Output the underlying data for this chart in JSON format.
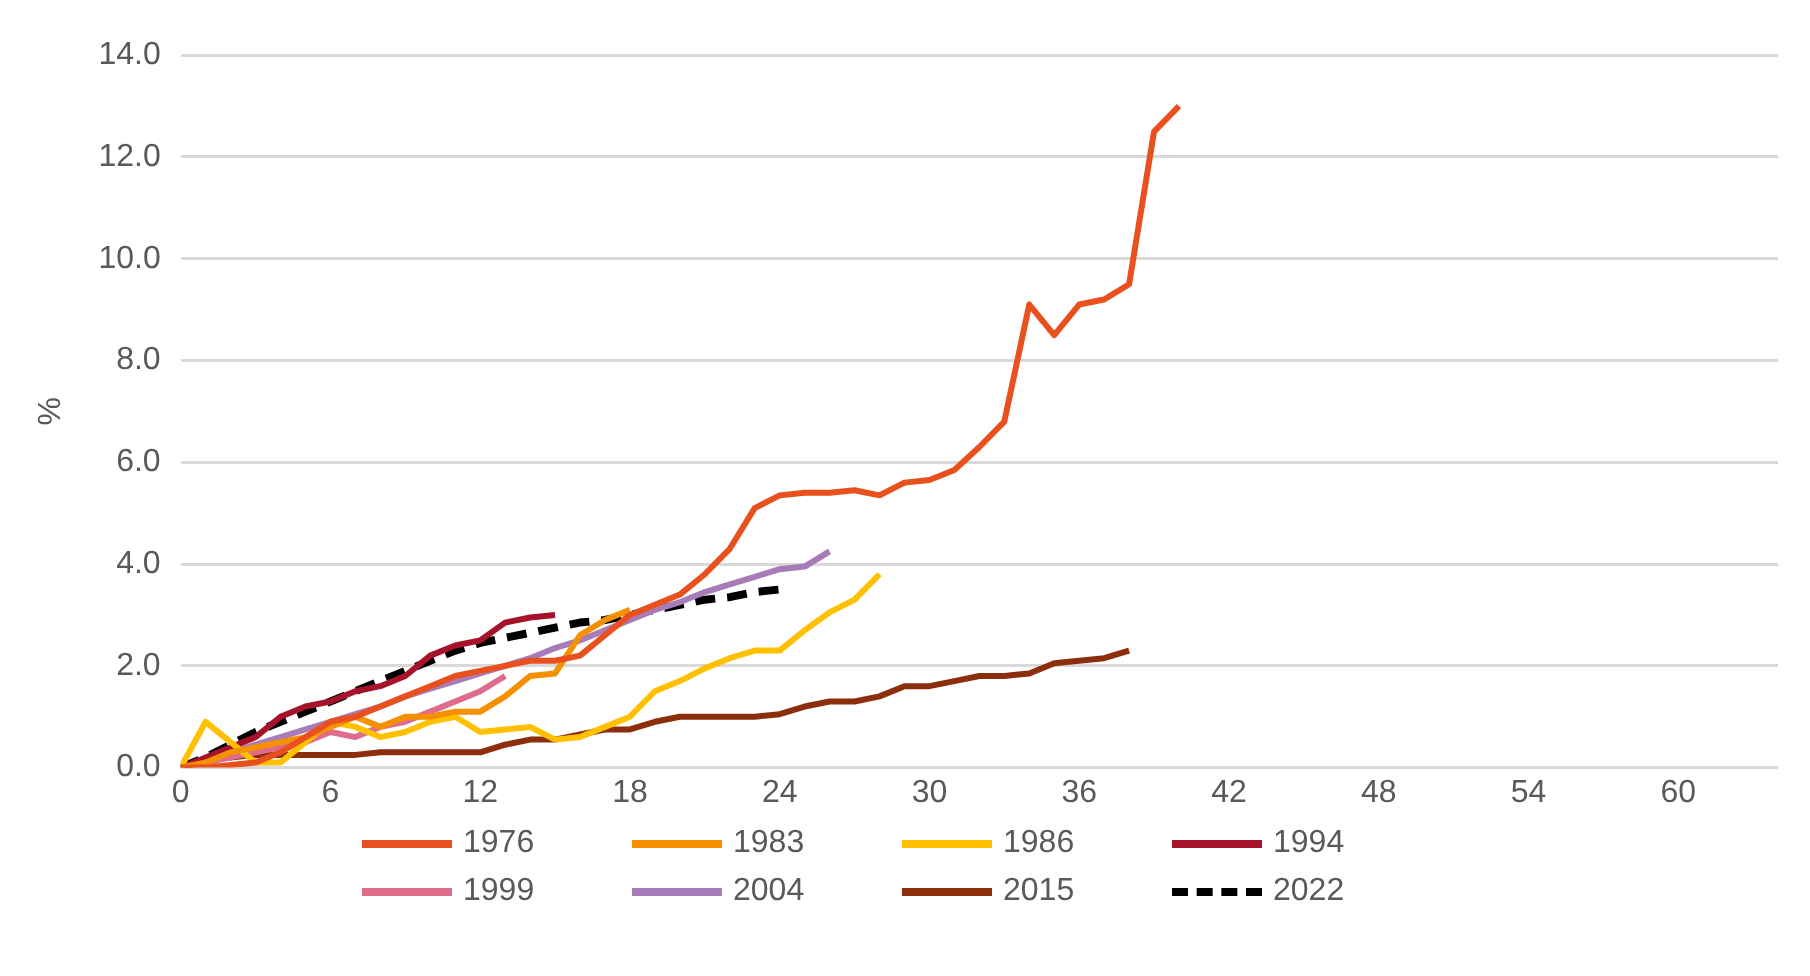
{
  "chart_data": {
    "type": "line",
    "ylabel": "%",
    "x": [
      0,
      1,
      2,
      3,
      4,
      5,
      6,
      7,
      8,
      9,
      10,
      11,
      12,
      13,
      14,
      15,
      16,
      17,
      18,
      19,
      20,
      21,
      22,
      23,
      24,
      25,
      26,
      27,
      28,
      29,
      30,
      31,
      32,
      33,
      34,
      35,
      36,
      37,
      38,
      39,
      40
    ],
    "xlim": [
      0,
      64
    ],
    "xticks": [
      0,
      6,
      12,
      18,
      24,
      30,
      36,
      42,
      48,
      54,
      60
    ],
    "ylim": [
      0,
      14
    ],
    "yticks": [
      {
        "value": 0,
        "label": "0.0"
      },
      {
        "value": 2,
        "label": "2.0"
      },
      {
        "value": 4,
        "label": "4.0"
      },
      {
        "value": 6,
        "label": "6.0"
      },
      {
        "value": 8,
        "label": "8.0"
      },
      {
        "value": 10,
        "label": "10.0"
      },
      {
        "value": 12,
        "label": "12.0"
      },
      {
        "value": 14,
        "label": "14.0"
      }
    ],
    "grid": "y",
    "legend": "bottom",
    "marker": "none",
    "series": [
      {
        "name": "1976",
        "color": "#e8501e",
        "values": [
          0,
          0,
          0.05,
          0.1,
          0.3,
          0.6,
          0.9,
          1.0,
          1.2,
          1.4,
          1.6,
          1.8,
          1.9,
          2.0,
          2.1,
          2.1,
          2.2,
          2.6,
          3.0,
          3.2,
          3.4,
          3.8,
          4.3,
          5.1,
          5.35,
          5.4,
          5.4,
          5.45,
          5.35,
          5.6,
          5.65,
          5.85,
          6.3,
          6.8,
          9.1,
          8.5,
          9.1,
          9.2,
          9.5,
          12.5,
          13.0
        ]
      },
      {
        "name": "1983",
        "color": "#f59100",
        "values": [
          0,
          0.1,
          0.3,
          0.4,
          0.5,
          0.6,
          0.8,
          1.0,
          0.8,
          1.0,
          1.0,
          1.1,
          1.1,
          1.4,
          1.8,
          1.85,
          2.6,
          2.9,
          3.1,
          null,
          null,
          null,
          null,
          null,
          null,
          null,
          null,
          null,
          null,
          null,
          null,
          null,
          null,
          null,
          null,
          null,
          null,
          null,
          null,
          null,
          null
        ]
      },
      {
        "name": "1986",
        "color": "#ffc000",
        "values": [
          0,
          0.9,
          0.5,
          0.1,
          0.1,
          0.5,
          0.9,
          0.8,
          0.6,
          0.7,
          0.9,
          1.0,
          0.7,
          0.75,
          0.8,
          0.55,
          0.6,
          0.8,
          1.0,
          1.5,
          1.7,
          1.95,
          2.15,
          2.3,
          2.3,
          2.7,
          3.05,
          3.3,
          3.8,
          null,
          null,
          null,
          null,
          null,
          null,
          null,
          null,
          null,
          null,
          null,
          null
        ]
      },
      {
        "name": "1994",
        "color": "#a5122a",
        "values": [
          0,
          0.2,
          0.4,
          0.6,
          1.0,
          1.2,
          1.3,
          1.5,
          1.6,
          1.8,
          2.2,
          2.4,
          2.5,
          2.85,
          2.95,
          3.0,
          null,
          null,
          null,
          null,
          null,
          null,
          null,
          null,
          null,
          null,
          null,
          null,
          null,
          null,
          null,
          null,
          null,
          null,
          null,
          null,
          null,
          null,
          null,
          null,
          null
        ]
      },
      {
        "name": "1999",
        "color": "#e06c8c",
        "values": [
          0,
          0.1,
          0.2,
          0.3,
          0.4,
          0.5,
          0.7,
          0.6,
          0.8,
          0.9,
          1.1,
          1.3,
          1.5,
          1.8,
          null,
          null,
          null,
          null,
          null,
          null,
          null,
          null,
          null,
          null,
          null,
          null,
          null,
          null,
          null,
          null,
          null,
          null,
          null,
          null,
          null,
          null,
          null,
          null,
          null,
          null,
          null
        ]
      },
      {
        "name": "2004",
        "color": "#a87cb8",
        "values": [
          0,
          0.15,
          0.3,
          0.45,
          0.6,
          0.75,
          0.9,
          1.05,
          1.2,
          1.4,
          1.55,
          1.7,
          1.85,
          2.0,
          2.15,
          2.35,
          2.5,
          2.7,
          2.9,
          3.1,
          3.25,
          3.45,
          3.6,
          3.75,
          3.9,
          3.95,
          4.25,
          null,
          null,
          null,
          null,
          null,
          null,
          null,
          null,
          null,
          null,
          null,
          null,
          null,
          null
        ]
      },
      {
        "name": "2015",
        "color": "#8c2d0c",
        "values": [
          0,
          0.15,
          0.2,
          0.25,
          0.25,
          0.25,
          0.25,
          0.25,
          0.3,
          0.3,
          0.3,
          0.3,
          0.3,
          0.45,
          0.55,
          0.55,
          0.65,
          0.75,
          0.75,
          0.9,
          1.0,
          1.0,
          1.0,
          1.0,
          1.05,
          1.2,
          1.3,
          1.3,
          1.4,
          1.6,
          1.6,
          1.7,
          1.8,
          1.8,
          1.85,
          2.05,
          2.1,
          2.15,
          2.3,
          null,
          null
        ]
      },
      {
        "name": "2022",
        "color": "#000000",
        "line_style": "dashed",
        "values": [
          0,
          0.2,
          0.45,
          0.7,
          0.9,
          1.1,
          1.3,
          1.5,
          1.7,
          1.9,
          2.1,
          2.3,
          2.45,
          2.55,
          2.65,
          2.75,
          2.85,
          2.9,
          3.0,
          3.1,
          3.2,
          3.3,
          3.35,
          3.45,
          3.5,
          null,
          null,
          null,
          null,
          null,
          null,
          null,
          null,
          null,
          null,
          null,
          null,
          null,
          null,
          null,
          null
        ]
      }
    ]
  }
}
